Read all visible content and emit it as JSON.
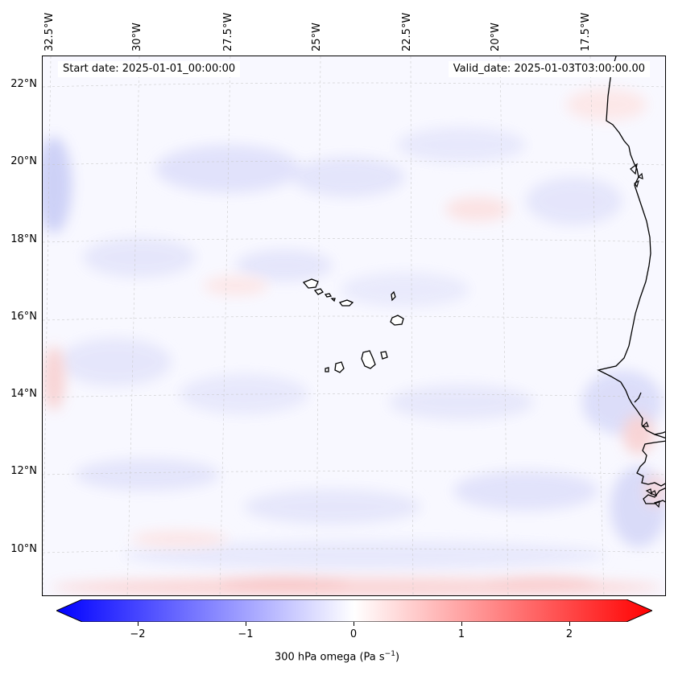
{
  "header": {
    "start_date": "Start date: 2025-01-01_00:00:00",
    "valid_date": "Valid_date: 2025-01-03T03:00:00.00"
  },
  "map": {
    "lon_labels": [
      "32.5°W",
      "30°W",
      "27.5°W",
      "25°W",
      "22.5°W",
      "20°W",
      "17.5°W"
    ],
    "lat_labels": [
      "22°N",
      "20°N",
      "18°N",
      "16°N",
      "14°N",
      "12°N",
      "10°N"
    ],
    "colors": {
      "negative": "#0000ff",
      "zero": "#ffffff",
      "positive": "#ff0000",
      "coast": "#000000",
      "grid": "#c8c8c8"
    }
  },
  "colorbar": {
    "ticks": [
      "−2",
      "−1",
      "0",
      "1",
      "2"
    ],
    "label_text": "300 hPa omega (Pa s",
    "label_sup": "−1",
    "label_close": ")",
    "range": [
      -2.5,
      2.5
    ]
  }
}
